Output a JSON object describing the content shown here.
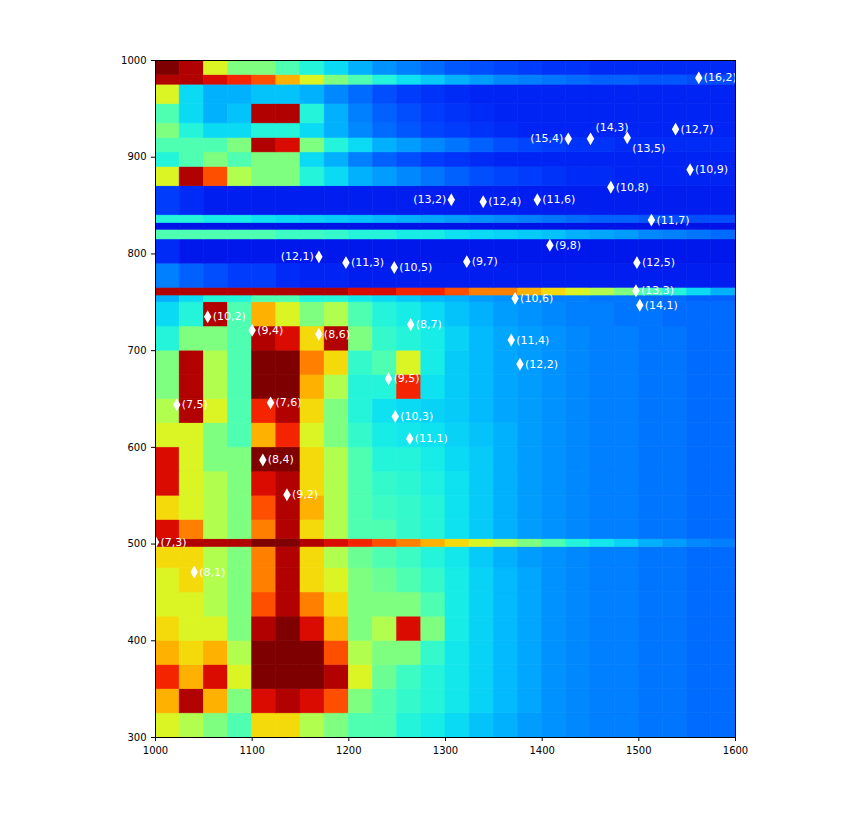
{
  "chart_data": {
    "type": "heatmap",
    "xlim": [
      1000,
      1600
    ],
    "ylim": [
      300,
      1000
    ],
    "xticks": [
      1000,
      1100,
      1200,
      1300,
      1400,
      1500,
      1600
    ],
    "yticks": [
      300,
      400,
      500,
      600,
      700,
      800,
      900,
      1000
    ],
    "x_edges": [
      1000,
      1025,
      1050,
      1075,
      1100,
      1125,
      1150,
      1175,
      1200,
      1225,
      1250,
      1275,
      1300,
      1325,
      1350,
      1375,
      1400,
      1425,
      1450,
      1475,
      1500,
      1525,
      1550,
      1575,
      1600
    ],
    "y_edges": [
      300,
      325,
      350,
      375,
      400,
      425,
      450,
      475,
      497,
      505,
      525,
      550,
      575,
      600,
      625,
      650,
      675,
      700,
      725,
      750,
      757,
      765,
      790,
      815,
      825,
      832,
      840,
      870,
      890,
      905,
      920,
      935,
      955,
      975,
      985,
      1000
    ],
    "color_range": [
      0,
      10
    ],
    "z": [
      [
        6,
        5.5,
        5,
        4.5,
        6.5,
        6.5,
        5.5,
        5,
        4.5,
        4.5,
        4,
        3.8,
        3.5,
        3.2,
        3,
        2.8,
        2.7,
        2.6,
        2.5,
        2.5,
        2.4,
        2.4,
        2.3,
        2.3
      ],
      [
        7,
        9.5,
        7,
        5,
        9,
        9.5,
        9,
        8,
        5,
        4.5,
        4.2,
        4,
        3.7,
        3.4,
        3.1,
        2.9,
        2.7,
        2.6,
        2.5,
        2.5,
        2.4,
        2.4,
        2.3,
        2.3
      ],
      [
        8.5,
        7,
        9,
        6,
        10,
        10,
        10,
        9.5,
        6,
        4.8,
        4.3,
        4,
        3.7,
        3.4,
        3.1,
        2.9,
        2.7,
        2.6,
        2.5,
        2.5,
        2.4,
        2.4,
        2.3,
        2.3
      ],
      [
        7,
        6.5,
        7,
        5.5,
        10,
        10,
        10,
        8,
        5.5,
        5,
        5,
        4.2,
        3.7,
        3.4,
        3.1,
        2.9,
        2.7,
        2.6,
        2.5,
        2.5,
        2.4,
        2.4,
        2.3,
        2.3
      ],
      [
        6.5,
        6,
        6,
        5,
        9.5,
        10,
        9,
        7,
        5,
        5.5,
        9,
        5,
        3.8,
        3.4,
        3.1,
        2.9,
        2.7,
        2.6,
        2.5,
        2.5,
        2.4,
        2.4,
        2.3,
        2.3
      ],
      [
        6,
        6,
        5.5,
        5,
        8,
        9.5,
        7.5,
        6.5,
        5,
        5,
        5,
        4.5,
        3.8,
        3.4,
        3.1,
        2.9,
        2.7,
        2.6,
        2.5,
        2.5,
        2.4,
        2.4,
        2.3,
        2.3
      ],
      [
        6,
        6.5,
        5.5,
        5,
        7.5,
        9.5,
        6.5,
        6,
        5,
        4.8,
        4.5,
        4.2,
        3.8,
        3.4,
        3.1,
        2.9,
        2.7,
        2.6,
        2.5,
        2.5,
        2.4,
        2.4,
        2.3,
        2.3
      ],
      [
        6.5,
        6.5,
        5.5,
        5,
        7.5,
        9.5,
        6.5,
        5.5,
        4.8,
        4.5,
        4.3,
        4,
        3.7,
        3.3,
        3,
        2.8,
        2.7,
        2.6,
        2.5,
        2.5,
        2.4,
        2.4,
        2.3,
        2.3
      ],
      [
        9.5,
        9.5,
        9.5,
        9.5,
        10,
        10,
        9.5,
        9,
        8.5,
        8,
        7.5,
        7,
        6.5,
        6,
        5.5,
        5,
        4.5,
        4,
        3.7,
        3.4,
        3,
        2.8,
        2.6,
        2.5
      ],
      [
        9,
        7.5,
        5.5,
        5,
        7.5,
        9.5,
        6.5,
        5.5,
        4.5,
        4.5,
        4.2,
        4,
        3.6,
        3.3,
        3,
        2.8,
        2.7,
        2.6,
        2.5,
        2.5,
        2.4,
        2.4,
        2.3,
        2.3
      ],
      [
        6.5,
        6,
        5.5,
        5,
        8,
        9.5,
        7,
        5.5,
        4.5,
        4.3,
        4.2,
        4,
        3.6,
        3.3,
        3,
        2.8,
        2.7,
        2.6,
        2.5,
        2.5,
        2.4,
        2.4,
        2.3,
        2.3
      ],
      [
        9,
        6,
        5.5,
        5,
        9,
        9.5,
        6.5,
        5.5,
        4.5,
        4.2,
        4.1,
        3.9,
        3.6,
        3.3,
        3,
        2.8,
        2.7,
        2.6,
        2.5,
        2.5,
        2.4,
        2.4,
        2.3,
        2.3
      ],
      [
        9,
        6,
        5,
        5,
        10,
        10,
        6.5,
        5.5,
        4.5,
        4,
        4,
        3.8,
        3.5,
        3.3,
        3,
        2.8,
        2.7,
        2.6,
        2.5,
        2.5,
        2.4,
        2.4,
        2.3,
        2.3
      ],
      [
        6,
        6,
        5,
        4.5,
        7,
        8.5,
        6,
        5,
        4.2,
        3.8,
        3.7,
        3.6,
        3.4,
        3.2,
        3,
        2.8,
        2.7,
        2.6,
        2.5,
        2.5,
        2.4,
        2.4,
        2.3,
        2.3
      ],
      [
        5.5,
        9.5,
        6,
        4.5,
        8.5,
        9.5,
        6.5,
        5,
        4,
        3.6,
        3.5,
        3.4,
        3.3,
        3.1,
        2.9,
        2.8,
        2.7,
        2.6,
        2.5,
        2.5,
        2.4,
        2.4,
        2.3,
        2.3
      ],
      [
        5,
        9.5,
        5.5,
        4.5,
        10,
        10,
        7,
        5.5,
        4,
        4,
        8.5,
        3.6,
        3.3,
        3.1,
        2.9,
        2.8,
        2.7,
        2.6,
        2.5,
        2.5,
        2.4,
        2.4,
        2.3,
        2.3
      ],
      [
        5,
        9.5,
        5.5,
        4.5,
        10,
        10,
        7.5,
        6.5,
        4.2,
        4.5,
        6,
        3.8,
        3.3,
        3.1,
        2.9,
        2.8,
        2.7,
        2.6,
        2.5,
        2.5,
        2.4,
        2.4,
        2.3,
        2.3
      ],
      [
        4,
        5,
        5,
        4.5,
        9.5,
        9,
        6.5,
        9.5,
        5,
        4.2,
        4,
        3.8,
        3.4,
        3.1,
        2.9,
        2.8,
        2.7,
        2.6,
        2.5,
        2.5,
        2.4,
        2.4,
        2.3,
        2.3
      ],
      [
        3.5,
        4,
        9.5,
        4.5,
        7,
        6,
        5,
        5.5,
        4.5,
        4,
        3.8,
        3.5,
        3.2,
        3,
        2.8,
        2.7,
        2.6,
        2.5,
        2.5,
        2.4,
        2.4,
        2.3,
        2.3,
        2.3
      ],
      [
        3,
        3.5,
        4,
        4,
        4.5,
        4.5,
        4,
        4,
        3.7,
        3.5,
        3.3,
        3.1,
        3,
        2.8,
        2.7,
        2.6,
        2.5,
        2.5,
        2.4,
        2.4,
        2.3,
        2.3,
        2.2,
        2.2
      ],
      [
        9.5,
        9.5,
        9.5,
        9.5,
        9.5,
        9.5,
        9.5,
        9.5,
        9,
        9,
        8.5,
        8.5,
        8,
        7.5,
        7.5,
        7,
        6.5,
        6,
        5.5,
        5,
        4.5,
        4,
        3.5,
        3
      ],
      [
        2.5,
        2.2,
        2,
        1.8,
        1.8,
        1.6,
        1.5,
        1.5,
        1.4,
        1.4,
        1.4,
        1.4,
        1.4,
        1.4,
        1.4,
        1.4,
        1.4,
        1.4,
        1.4,
        1.4,
        1.4,
        1.4,
        1.4,
        1.4
      ],
      [
        1.6,
        1.3,
        1.3,
        1.3,
        1.3,
        1.3,
        1.3,
        1.3,
        1.3,
        1.3,
        1.3,
        1.3,
        1.3,
        1.3,
        1.3,
        1.3,
        1.3,
        1.3,
        1.3,
        1.3,
        1.3,
        1.3,
        1.3,
        1.3
      ],
      [
        4.5,
        4.5,
        4.5,
        4.5,
        4.5,
        4.3,
        4.3,
        4.2,
        4,
        4,
        3.8,
        3.8,
        3.6,
        3.5,
        3.4,
        3.3,
        3.2,
        3,
        2.9,
        2.8,
        2.6,
        2.5,
        2.4,
        2.3
      ],
      [
        1.2,
        1.2,
        1.2,
        1.2,
        1.2,
        1.2,
        1.2,
        1.2,
        1.2,
        1.2,
        1.2,
        1.2,
        1.2,
        1.2,
        1.2,
        1.2,
        1.2,
        1.2,
        1.2,
        1.2,
        1.2,
        1.2,
        1.2,
        1.2
      ],
      [
        4,
        4,
        3.8,
        3.8,
        3.6,
        3.5,
        3.4,
        3.3,
        3.2,
        3.1,
        3,
        2.9,
        2.8,
        2.7,
        2.6,
        2.5,
        2.4,
        2.3,
        2.2,
        2.2,
        2.1,
        2,
        2,
        2
      ],
      [
        1.8,
        1.6,
        1.4,
        1.4,
        1.4,
        1.4,
        1.4,
        1.4,
        1.4,
        1.4,
        1.4,
        1.4,
        1.4,
        1.4,
        1.4,
        1.4,
        1.4,
        1.4,
        1.4,
        1.4,
        1.4,
        1.4,
        1.4,
        1.4
      ],
      [
        6,
        9.5,
        8,
        5.5,
        5,
        5,
        4,
        3.5,
        3,
        2.8,
        2.6,
        2.4,
        2.2,
        2,
        1.9,
        1.8,
        1.7,
        1.6,
        1.6,
        1.5,
        1.5,
        1.5,
        1.5,
        1.5
      ],
      [
        4,
        4.5,
        5,
        4.5,
        5,
        5,
        3.5,
        3,
        2.5,
        2.2,
        2,
        1.8,
        1.7,
        1.6,
        1.5,
        1.5,
        1.5,
        1.5,
        1.5,
        1.5,
        1.5,
        1.5,
        1.5,
        1.5
      ],
      [
        4.5,
        4.5,
        4.5,
        5,
        9.5,
        9,
        5,
        4,
        3.5,
        3,
        2.8,
        2.6,
        2.4,
        2.2,
        2,
        1.9,
        1.8,
        1.7,
        1.7,
        1.6,
        1.6,
        1.6,
        1.6,
        1.6
      ],
      [
        5,
        4,
        3.5,
        3.5,
        4,
        4,
        3.5,
        3,
        2.6,
        2.3,
        2.1,
        1.9,
        1.8,
        1.7,
        1.6,
        1.5,
        1.5,
        1.5,
        1.5,
        1.5,
        1.5,
        1.5,
        1.5,
        1.5
      ],
      [
        4.5,
        3.5,
        3,
        3.2,
        9.5,
        9.5,
        4,
        3,
        2.5,
        2.2,
        2,
        1.8,
        1.7,
        1.6,
        1.5,
        1.5,
        1.5,
        1.5,
        1.5,
        1.5,
        1.5,
        1.5,
        1.5,
        1.5
      ],
      [
        6,
        3.5,
        3,
        3,
        3.2,
        3.2,
        3,
        2.6,
        2.3,
        2,
        1.8,
        1.7,
        1.6,
        1.5,
        1.5,
        1.5,
        1.5,
        1.5,
        1.5,
        1.5,
        1.5,
        1.5,
        1.5,
        1.5
      ],
      [
        9.5,
        9.5,
        9,
        8.5,
        8,
        7,
        6,
        5,
        4.5,
        4,
        3.6,
        3.3,
        3,
        2.8,
        2.6,
        2.5,
        2.4,
        2.3,
        2.2,
        2.2,
        2.1,
        2.1,
        2,
        2
      ],
      [
        10,
        9.5,
        6,
        5,
        5,
        4.5,
        4,
        3.5,
        3,
        2.7,
        2.5,
        2.3,
        2.1,
        2,
        1.9,
        1.8,
        1.7,
        1.7,
        1.6,
        1.6,
        1.6,
        1.6,
        1.6,
        1.6
      ]
    ],
    "marker": "diamond",
    "annotations": [
      {
        "text": "(16,2)",
        "x": 1562,
        "y": 982
      },
      {
        "text": "(15,4)",
        "x": 1427,
        "y": 919
      },
      {
        "text": "(14,3)",
        "x": 1450,
        "y": 919
      },
      {
        "text": "(13,5)",
        "x": 1488,
        "y": 920
      },
      {
        "text": "(12,7)",
        "x": 1538,
        "y": 929
      },
      {
        "text": "(10,9)",
        "x": 1553,
        "y": 887
      },
      {
        "text": "(10,8)",
        "x": 1471,
        "y": 869
      },
      {
        "text": "(11,6)",
        "x": 1395,
        "y": 856
      },
      {
        "text": "(13,2)",
        "x": 1306,
        "y": 856
      },
      {
        "text": "(12,4)",
        "x": 1339,
        "y": 854
      },
      {
        "text": "(11,7)",
        "x": 1513,
        "y": 835
      },
      {
        "text": "(9,8)",
        "x": 1408,
        "y": 809
      },
      {
        "text": "(12,1)",
        "x": 1169,
        "y": 797
      },
      {
        "text": "(11,3)",
        "x": 1197,
        "y": 791
      },
      {
        "text": "(10,5)",
        "x": 1247,
        "y": 786
      },
      {
        "text": "(9,7)",
        "x": 1322,
        "y": 792
      },
      {
        "text": "(12,5)",
        "x": 1498,
        "y": 791
      },
      {
        "text": "(13,3)",
        "x": 1497,
        "y": 762
      },
      {
        "text": "(14,1)",
        "x": 1501,
        "y": 747
      },
      {
        "text": "(10,6)",
        "x": 1372,
        "y": 754
      },
      {
        "text": "(10,2)",
        "x": 1054,
        "y": 735
      },
      {
        "text": "(9,4)",
        "x": 1100,
        "y": 721
      },
      {
        "text": "(8,6)",
        "x": 1169,
        "y": 717
      },
      {
        "text": "(8,7)",
        "x": 1264,
        "y": 727
      },
      {
        "text": "(11,4)",
        "x": 1368,
        "y": 711
      },
      {
        "text": "(12,2)",
        "x": 1377,
        "y": 686
      },
      {
        "text": "(9,5)",
        "x": 1241,
        "y": 671
      },
      {
        "text": "(7,5)",
        "x": 1022,
        "y": 644
      },
      {
        "text": "(7,6)",
        "x": 1119,
        "y": 646
      },
      {
        "text": "(10,3)",
        "x": 1248,
        "y": 632
      },
      {
        "text": "(11,1)",
        "x": 1263,
        "y": 609
      },
      {
        "text": "(8,4)",
        "x": 1111,
        "y": 587
      },
      {
        "text": "(9,2)",
        "x": 1136,
        "y": 551
      },
      {
        "text": "(7,3)",
        "x": 1000,
        "y": 502
      },
      {
        "text": "(8,1)",
        "x": 1040,
        "y": 471
      }
    ]
  }
}
